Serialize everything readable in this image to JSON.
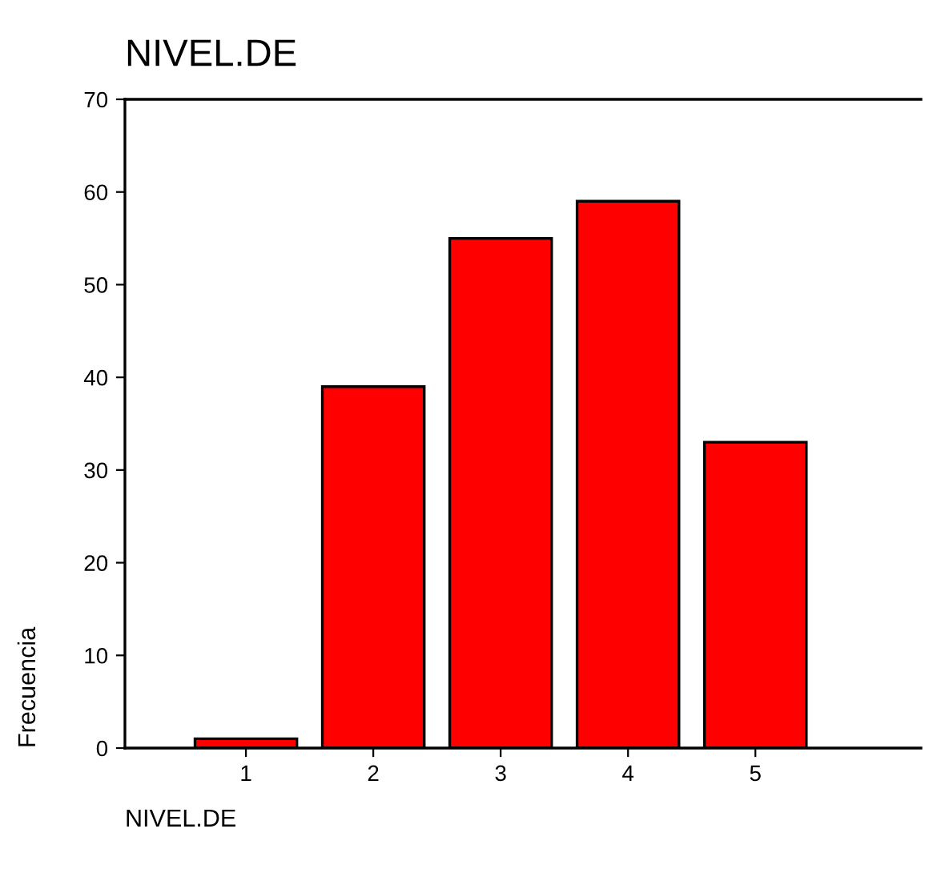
{
  "chart_data": {
    "type": "bar",
    "title": "NIVEL.DE",
    "xlabel": "NIVEL.DE",
    "ylabel": "Frecuencia",
    "categories": [
      "1",
      "2",
      "3",
      "4",
      "5"
    ],
    "values": [
      1,
      39,
      55,
      59,
      33
    ],
    "color": "#ff0000",
    "ylim": [
      0,
      70
    ],
    "yticks": [
      0,
      10,
      20,
      30,
      40,
      50,
      60,
      70
    ],
    "grid": false,
    "legend": false
  }
}
